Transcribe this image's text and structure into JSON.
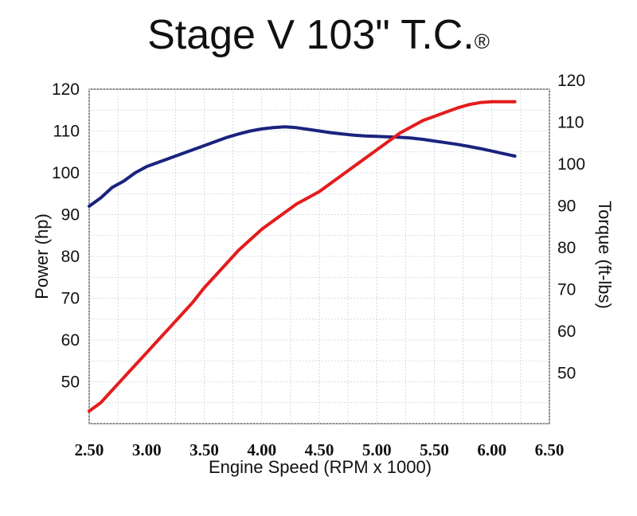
{
  "chart_data": {
    "type": "line",
    "title": "Stage V 103\" T.C.",
    "title_mark": "®",
    "xlabel": "Engine Speed (RPM x 1000)",
    "ylabel_left": "Power (hp)",
    "ylabel_right": "Torque (ft-lbs)",
    "xlim": [
      2.5,
      6.5
    ],
    "ylim_left": [
      40,
      120
    ],
    "ylim_right": [
      40,
      120
    ],
    "x_ticks": [
      "2.50",
      "3.00",
      "3.50",
      "4.00",
      "4.50",
      "5.00",
      "5.50",
      "6.00",
      "6.50"
    ],
    "y_ticks_left": [
      "50",
      "60",
      "70",
      "80",
      "90",
      "100",
      "110",
      "120"
    ],
    "y_ticks_right": [
      "50",
      "60",
      "70",
      "80",
      "90",
      "100",
      "110",
      "120"
    ],
    "grid": true,
    "series": [
      {
        "axis": "left",
        "color": "#1a237e",
        "points": [
          [
            2.5,
            92
          ],
          [
            2.6,
            94
          ],
          [
            2.7,
            96.5
          ],
          [
            2.8,
            98
          ],
          [
            2.9,
            100
          ],
          [
            3.0,
            101.5
          ],
          [
            3.1,
            102.5
          ],
          [
            3.2,
            103.5
          ],
          [
            3.3,
            104.5
          ],
          [
            3.4,
            105.5
          ],
          [
            3.5,
            106.5
          ],
          [
            3.6,
            107.5
          ],
          [
            3.7,
            108.5
          ],
          [
            3.8,
            109.3
          ],
          [
            3.9,
            110
          ],
          [
            4.0,
            110.5
          ],
          [
            4.1,
            110.8
          ],
          [
            4.2,
            111
          ],
          [
            4.3,
            110.8
          ],
          [
            4.4,
            110.4
          ],
          [
            4.5,
            110
          ],
          [
            4.6,
            109.6
          ],
          [
            4.7,
            109.3
          ],
          [
            4.8,
            109
          ],
          [
            4.9,
            108.8
          ],
          [
            5.0,
            108.7
          ],
          [
            5.1,
            108.6
          ],
          [
            5.2,
            108.5
          ],
          [
            5.3,
            108.3
          ],
          [
            5.4,
            108
          ],
          [
            5.5,
            107.6
          ],
          [
            5.6,
            107.2
          ],
          [
            5.7,
            106.8
          ],
          [
            5.8,
            106.3
          ],
          [
            5.9,
            105.8
          ],
          [
            6.0,
            105.2
          ],
          [
            6.1,
            104.6
          ],
          [
            6.2,
            104
          ]
        ]
      },
      {
        "axis": "right",
        "color": "#e41c1c",
        "points": [
          [
            2.5,
            43
          ],
          [
            2.6,
            45
          ],
          [
            2.7,
            48
          ],
          [
            2.8,
            51
          ],
          [
            2.9,
            54
          ],
          [
            3.0,
            57
          ],
          [
            3.1,
            60
          ],
          [
            3.2,
            63
          ],
          [
            3.3,
            66
          ],
          [
            3.4,
            69
          ],
          [
            3.5,
            72.5
          ],
          [
            3.6,
            75.5
          ],
          [
            3.7,
            78.5
          ],
          [
            3.8,
            81.5
          ],
          [
            3.9,
            84
          ],
          [
            4.0,
            86.5
          ],
          [
            4.1,
            88.5
          ],
          [
            4.2,
            90.5
          ],
          [
            4.3,
            92.5
          ],
          [
            4.4,
            94
          ],
          [
            4.5,
            95.5
          ],
          [
            4.6,
            97.5
          ],
          [
            4.7,
            99.5
          ],
          [
            4.8,
            101.5
          ],
          [
            4.9,
            103.5
          ],
          [
            5.0,
            105.5
          ],
          [
            5.1,
            107.5
          ],
          [
            5.2,
            109.5
          ],
          [
            5.3,
            111
          ],
          [
            5.4,
            112.5
          ],
          [
            5.5,
            113.5
          ],
          [
            5.6,
            114.5
          ],
          [
            5.7,
            115.5
          ],
          [
            5.8,
            116.3
          ],
          [
            5.9,
            116.8
          ],
          [
            6.0,
            117
          ],
          [
            6.1,
            117
          ],
          [
            6.2,
            117
          ]
        ]
      }
    ]
  }
}
